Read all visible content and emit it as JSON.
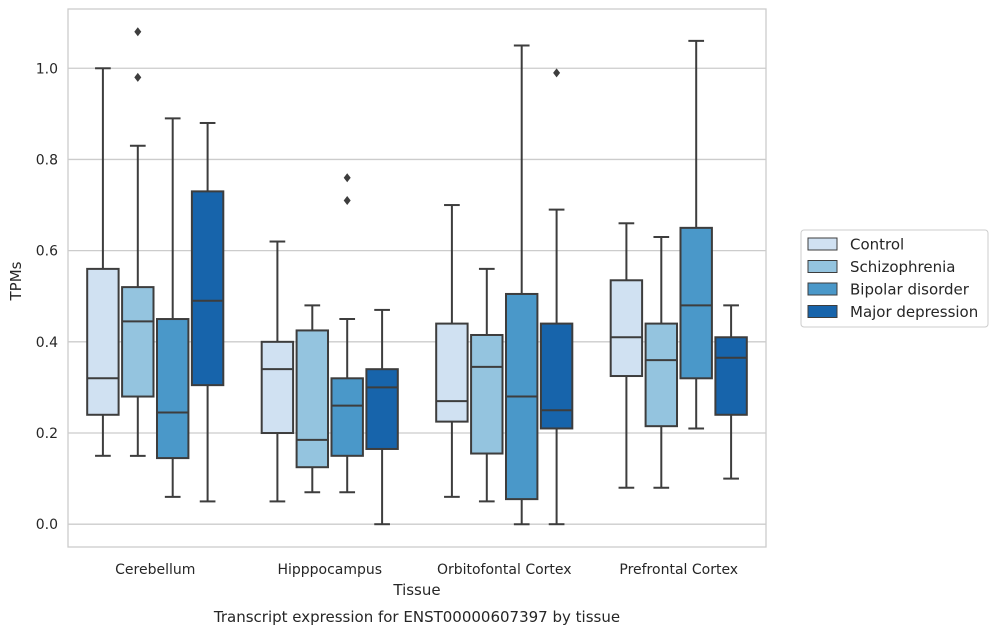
{
  "chart_data": {
    "type": "box",
    "xlabel": "Tissue",
    "ylabel": "TPMs",
    "caption": "Transcript expression for ENST00000607397 by tissue",
    "ylim": [
      -0.05,
      1.13
    ],
    "yticks": [
      "0.0",
      "0.2",
      "0.4",
      "0.6",
      "0.8",
      "1.0"
    ],
    "grid": "horizontal",
    "legend_position": "right",
    "categories": [
      "Cerebellum",
      "Hipppocampus",
      "Orbitofontal Cortex",
      "Prefrontal Cortex"
    ],
    "series": [
      {
        "name": "Control",
        "color": "#d0e1f2",
        "boxes": [
          {
            "whislo": 0.15,
            "q1": 0.24,
            "med": 0.32,
            "q3": 0.56,
            "whishi": 1.0,
            "fliers": []
          },
          {
            "whislo": 0.05,
            "q1": 0.2,
            "med": 0.34,
            "q3": 0.4,
            "whishi": 0.62,
            "fliers": []
          },
          {
            "whislo": 0.06,
            "q1": 0.225,
            "med": 0.27,
            "q3": 0.44,
            "whishi": 0.7,
            "fliers": []
          },
          {
            "whislo": 0.08,
            "q1": 0.325,
            "med": 0.41,
            "q3": 0.535,
            "whishi": 0.66,
            "fliers": []
          }
        ]
      },
      {
        "name": "Schizophrenia",
        "color": "#94c4df",
        "boxes": [
          {
            "whislo": 0.15,
            "q1": 0.28,
            "med": 0.445,
            "q3": 0.52,
            "whishi": 0.83,
            "fliers": [
              0.98,
              1.08
            ]
          },
          {
            "whislo": 0.07,
            "q1": 0.125,
            "med": 0.185,
            "q3": 0.425,
            "whishi": 0.48,
            "fliers": []
          },
          {
            "whislo": 0.05,
            "q1": 0.155,
            "med": 0.345,
            "q3": 0.415,
            "whishi": 0.56,
            "fliers": []
          },
          {
            "whislo": 0.08,
            "q1": 0.215,
            "med": 0.36,
            "q3": 0.44,
            "whishi": 0.63,
            "fliers": []
          }
        ]
      },
      {
        "name": "Bipolar disorder",
        "color": "#4a98c9",
        "boxes": [
          {
            "whislo": 0.06,
            "q1": 0.145,
            "med": 0.245,
            "q3": 0.45,
            "whishi": 0.89,
            "fliers": []
          },
          {
            "whislo": 0.07,
            "q1": 0.15,
            "med": 0.26,
            "q3": 0.32,
            "whishi": 0.45,
            "fliers": [
              0.71,
              0.76
            ]
          },
          {
            "whislo": 0.0,
            "q1": 0.055,
            "med": 0.28,
            "q3": 0.505,
            "whishi": 1.05,
            "fliers": []
          },
          {
            "whislo": 0.21,
            "q1": 0.32,
            "med": 0.48,
            "q3": 0.65,
            "whishi": 1.06,
            "fliers": []
          }
        ]
      },
      {
        "name": "Major depression",
        "color": "#1764ab",
        "boxes": [
          {
            "whislo": 0.05,
            "q1": 0.305,
            "med": 0.49,
            "q3": 0.73,
            "whishi": 0.88,
            "fliers": []
          },
          {
            "whislo": 0.0,
            "q1": 0.165,
            "med": 0.3,
            "q3": 0.34,
            "whishi": 0.47,
            "fliers": []
          },
          {
            "whislo": 0.0,
            "q1": 0.21,
            "med": 0.25,
            "q3": 0.44,
            "whishi": 0.69,
            "fliers": [
              0.99
            ]
          },
          {
            "whislo": 0.1,
            "q1": 0.24,
            "med": 0.365,
            "q3": 0.41,
            "whishi": 0.48,
            "fliers": []
          }
        ]
      }
    ]
  }
}
